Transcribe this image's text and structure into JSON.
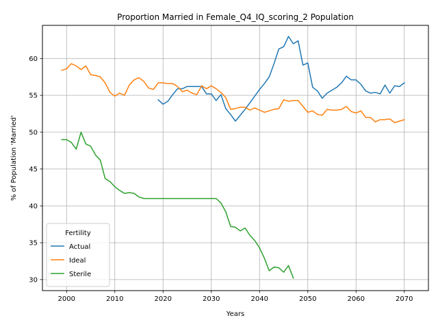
{
  "chart_data": {
    "type": "line",
    "title": "Proportion Married in Female_Q4_IQ_scoring_2 Population",
    "xlabel": "Years",
    "ylabel": "% of Population 'Married'",
    "xlim": [
      1995,
      2075
    ],
    "ylim": [
      28.5,
      64.5
    ],
    "xticks": [
      2000,
      2010,
      2020,
      2030,
      2040,
      2050,
      2060,
      2070
    ],
    "yticks": [
      30,
      35,
      40,
      45,
      50,
      55,
      60
    ],
    "grid": true,
    "legend": {
      "title": "Fertility",
      "placement": "lower-left"
    },
    "series": [
      {
        "name": "Actual",
        "color": "#1f77b4",
        "x": [
          2019,
          2020,
          2021,
          2022,
          2023,
          2024,
          2025,
          2026,
          2027,
          2028,
          2029,
          2030,
          2031,
          2032,
          2033,
          2034,
          2035,
          2036,
          2037,
          2038,
          2039,
          2040,
          2041,
          2042,
          2043,
          2044,
          2045,
          2046,
          2047,
          2048,
          2049,
          2050,
          2051,
          2052,
          2053,
          2054,
          2055,
          2056,
          2057,
          2058,
          2059,
          2060,
          2061,
          2062,
          2063,
          2064,
          2065,
          2066,
          2067,
          2068,
          2069,
          2070
        ],
        "y": [
          54.4,
          53.8,
          54.2,
          55.1,
          55.9,
          55.9,
          56.2,
          56.2,
          56.2,
          56.2,
          55.2,
          55.2,
          54.3,
          55.1,
          53.2,
          52.4,
          51.5,
          52.3,
          53.1,
          54.0,
          54.9,
          55.8,
          56.6,
          57.5,
          59.3,
          61.3,
          61.6,
          63.0,
          62.0,
          62.4,
          59.1,
          59.4,
          56.1,
          55.6,
          54.6,
          55.3,
          55.7,
          56.1,
          56.7,
          57.6,
          57.1,
          57.1,
          56.5,
          55.6,
          55.3,
          55.4,
          55.2,
          56.4,
          55.3,
          56.3,
          56.2,
          56.7
        ]
      },
      {
        "name": "Ideal",
        "color": "#ff7f0e",
        "x": [
          1999,
          2000,
          2001,
          2002,
          2003,
          2004,
          2005,
          2006,
          2007,
          2008,
          2009,
          2010,
          2011,
          2012,
          2013,
          2014,
          2015,
          2016,
          2017,
          2018,
          2019,
          2020,
          2021,
          2022,
          2023,
          2024,
          2025,
          2026,
          2027,
          2028,
          2029,
          2030,
          2031,
          2032,
          2033,
          2034,
          2035,
          2036,
          2037,
          2038,
          2039,
          2040,
          2041,
          2042,
          2043,
          2044,
          2045,
          2046,
          2047,
          2048,
          2049,
          2050,
          2051,
          2052,
          2053,
          2054,
          2055,
          2056,
          2057,
          2058,
          2059,
          2060,
          2061,
          2062,
          2063,
          2064,
          2065,
          2066,
          2067,
          2068,
          2069,
          2070
        ],
        "y": [
          58.4,
          58.6,
          59.3,
          59.0,
          58.5,
          59.0,
          57.8,
          57.7,
          57.5,
          56.7,
          55.4,
          54.9,
          55.3,
          55.0,
          56.4,
          57.1,
          57.4,
          56.9,
          56.0,
          55.8,
          56.7,
          56.7,
          56.6,
          56.6,
          56.2,
          55.5,
          55.7,
          55.3,
          55.1,
          56.3,
          55.9,
          56.3,
          55.9,
          55.4,
          54.7,
          53.1,
          53.2,
          53.4,
          53.4,
          53.0,
          53.3,
          53.0,
          52.7,
          52.9,
          53.1,
          53.2,
          54.4,
          54.2,
          54.3,
          54.3,
          53.5,
          52.7,
          52.9,
          52.4,
          52.3,
          53.1,
          53.0,
          53.0,
          53.1,
          53.5,
          52.8,
          52.6,
          52.9,
          52.0,
          52.0,
          51.4,
          51.7,
          51.7,
          51.8,
          51.3,
          51.5,
          51.7
        ]
      },
      {
        "name": "Sterile",
        "color": "#2ca02c",
        "x": [
          1999,
          2000,
          2001,
          2002,
          2003,
          2004,
          2005,
          2006,
          2007,
          2008,
          2009,
          2010,
          2011,
          2012,
          2013,
          2014,
          2015,
          2016,
          2017,
          2018,
          2019,
          2020,
          2021,
          2022,
          2023,
          2024,
          2025,
          2026,
          2027,
          2028,
          2029,
          2030,
          2031,
          2032,
          2033,
          2034,
          2035,
          2036,
          2037,
          2038,
          2039,
          2040,
          2041,
          2042,
          2043,
          2044,
          2045,
          2046,
          2047
        ],
        "y": [
          49.0,
          49.0,
          48.6,
          47.7,
          50.0,
          48.4,
          48.1,
          46.9,
          46.2,
          43.7,
          43.3,
          42.6,
          42.1,
          41.7,
          41.8,
          41.7,
          41.2,
          41.0,
          41.0,
          41.0,
          41.0,
          41.0,
          41.0,
          41.0,
          41.0,
          41.0,
          41.0,
          41.0,
          41.0,
          41.0,
          41.0,
          41.0,
          41.0,
          40.4,
          39.2,
          37.2,
          37.1,
          36.6,
          37.0,
          36.0,
          35.3,
          34.3,
          32.9,
          31.2,
          31.7,
          31.6,
          31.0,
          31.9,
          30.2
        ]
      }
    ]
  }
}
